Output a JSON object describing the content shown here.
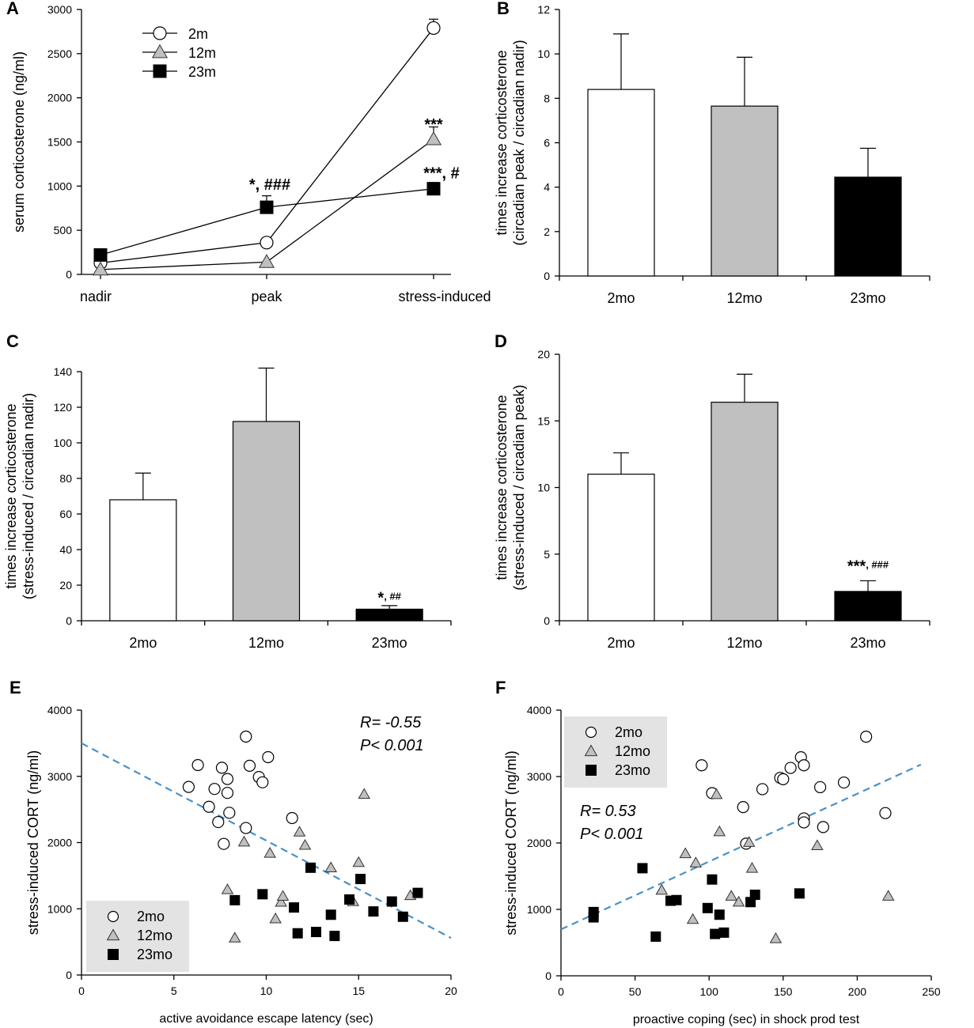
{
  "colors": {
    "c2": "#ffffff",
    "c12": "#c0c0c0",
    "c23": "#000000",
    "trend": "#4a90c8",
    "legend_bg": "#e3e3e3"
  },
  "chart_data": [
    {
      "panel": "A",
      "type": "line",
      "categories": [
        "nadir",
        "peak",
        "stress-induced"
      ],
      "ylabel": "serum corticosterone (ng/ml)",
      "ylim": [
        0,
        3000
      ],
      "yticks": [
        0,
        500,
        1000,
        1500,
        2000,
        2500,
        3000
      ],
      "legend": {
        "position": "top-left",
        "items": [
          "2m",
          "12m",
          "23m"
        ]
      },
      "series": [
        {
          "name": "2m",
          "key": "c2",
          "marker": "circle",
          "values": [
            130,
            360,
            2790
          ],
          "err": [
            0,
            0,
            100
          ]
        },
        {
          "name": "12m",
          "key": "c12",
          "marker": "triangle",
          "values": [
            55,
            140,
            1530
          ],
          "err": [
            0,
            0,
            140
          ]
        },
        {
          "name": "23m",
          "key": "c23",
          "marker": "square",
          "values": [
            220,
            760,
            970
          ],
          "err": [
            0,
            130,
            70
          ]
        }
      ],
      "annotations": [
        {
          "cat": 1,
          "value": 960,
          "stars": "*",
          "hash": ", ###"
        },
        {
          "cat": 2,
          "value": 1640,
          "stars": "***",
          "hash": ""
        },
        {
          "cat": 2,
          "value": 1090,
          "stars": "***",
          "hash": ", #"
        }
      ]
    },
    {
      "panel": "B",
      "type": "bar",
      "categories": [
        "2mo",
        "12mo",
        "23mo"
      ],
      "ylabel": "times increase corticosterone",
      "ylabel2": "(circadian peak / circadian nadir)",
      "ylim": [
        0,
        12
      ],
      "yticks": [
        0,
        2,
        4,
        6,
        8,
        10,
        12
      ],
      "values": [
        8.4,
        7.65,
        4.45
      ],
      "err": [
        2.5,
        2.2,
        1.3
      ],
      "annotations": []
    },
    {
      "panel": "C",
      "type": "bar",
      "categories": [
        "2mo",
        "12mo",
        "23mo"
      ],
      "ylabel": "times increase corticosterone",
      "ylabel2": "(stress-induced / circadian nadir)",
      "ylim": [
        0,
        140
      ],
      "yticks": [
        0,
        20,
        40,
        60,
        80,
        100,
        120,
        140
      ],
      "values": [
        68,
        112,
        6.5
      ],
      "err": [
        15,
        30,
        2
      ],
      "annotations": [
        {
          "cat": 2,
          "value": 10,
          "stars": "*",
          "hash": ", ##"
        }
      ]
    },
    {
      "panel": "D",
      "type": "bar",
      "categories": [
        "2mo",
        "12mo",
        "23mo"
      ],
      "ylabel": "times increase corticosterone",
      "ylabel2": "(stress-induced / circadian peak)",
      "ylim": [
        0,
        20
      ],
      "yticks": [
        0,
        5,
        10,
        15,
        20
      ],
      "values": [
        11,
        16.4,
        2.2
      ],
      "err": [
        1.6,
        2.1,
        0.8
      ],
      "annotations": [
        {
          "cat": 2,
          "value": 3.7,
          "stars": "***",
          "hash": ", ###"
        }
      ]
    },
    {
      "panel": "E",
      "type": "scatter",
      "xlabel": "active avoidance escape latency (sec)",
      "ylabel": "stress-induced CORT (ng/ml)",
      "xlim": [
        0,
        20
      ],
      "ylim": [
        0,
        4000
      ],
      "xticks": [
        0,
        5,
        10,
        15,
        20
      ],
      "yticks": [
        0,
        1000,
        2000,
        3000,
        4000
      ],
      "legend": {
        "position": "bottom-left",
        "items": [
          "2mo",
          "12mo",
          "23mo"
        ]
      },
      "stats": {
        "r": "R= -0.55",
        "p": "P<  0.001"
      },
      "trend": [
        [
          0,
          3500
        ],
        [
          20,
          560
        ]
      ],
      "series": [
        {
          "name": "2mo",
          "key": "c2",
          "marker": "circle",
          "points": [
            [
              5.8,
              2840
            ],
            [
              6.3,
              3170
            ],
            [
              6.9,
              2540
            ],
            [
              7.2,
              2810
            ],
            [
              7.4,
              2310
            ],
            [
              7.6,
              3130
            ],
            [
              7.7,
              1980
            ],
            [
              7.9,
              2960
            ],
            [
              7.9,
              2750
            ],
            [
              8.0,
              2450
            ],
            [
              8.9,
              3600
            ],
            [
              8.9,
              2220
            ],
            [
              9.1,
              3160
            ],
            [
              9.6,
              2990
            ],
            [
              9.8,
              2910
            ],
            [
              10.1,
              3290
            ],
            [
              11.4,
              2370
            ]
          ]
        },
        {
          "name": "12mo",
          "key": "c12",
          "marker": "triangle",
          "points": [
            [
              7.9,
              1290
            ],
            [
              8.3,
              560
            ],
            [
              8.8,
              2010
            ],
            [
              10.2,
              1840
            ],
            [
              10.5,
              850
            ],
            [
              10.8,
              1100
            ],
            [
              10.9,
              1190
            ],
            [
              11.8,
              2160
            ],
            [
              12.1,
              1960
            ],
            [
              13.5,
              1620
            ],
            [
              14.7,
              1110
            ],
            [
              15.0,
              1700
            ],
            [
              15.3,
              2730
            ],
            [
              17.8,
              1200
            ]
          ]
        },
        {
          "name": "23mo",
          "key": "c23",
          "marker": "square",
          "points": [
            [
              8.3,
              1130
            ],
            [
              9.8,
              1220
            ],
            [
              11.5,
              1020
            ],
            [
              11.7,
              630
            ],
            [
              12.4,
              1620
            ],
            [
              12.7,
              650
            ],
            [
              13.5,
              910
            ],
            [
              13.7,
              590
            ],
            [
              14.5,
              1140
            ],
            [
              15.1,
              1450
            ],
            [
              15.8,
              960
            ],
            [
              16.8,
              1110
            ],
            [
              17.4,
              880
            ],
            [
              18.2,
              1240
            ]
          ]
        }
      ]
    },
    {
      "panel": "F",
      "type": "scatter",
      "xlabel": "proactive coping (sec) in shock prod test",
      "ylabel": "stress-induced CORT (ng/ml)",
      "xlim": [
        0,
        250
      ],
      "ylim": [
        0,
        4000
      ],
      "xticks": [
        0,
        50,
        100,
        150,
        200,
        250
      ],
      "yticks": [
        0,
        1000,
        2000,
        3000,
        4000
      ],
      "legend": {
        "position": "top-left",
        "items": [
          "2mo",
          "12mo",
          "23mo"
        ]
      },
      "stats": {
        "r": "R= 0.53",
        "p": "P< 0.001"
      },
      "trend": [
        [
          0,
          700
        ],
        [
          243,
          3180
        ]
      ],
      "series": [
        {
          "name": "2mo",
          "key": "c2",
          "marker": "circle",
          "points": [
            [
              95,
              3170
            ],
            [
              102,
              2750
            ],
            [
              123,
              2540
            ],
            [
              125,
              1990
            ],
            [
              136,
              2810
            ],
            [
              148,
              2980
            ],
            [
              150,
              2960
            ],
            [
              155,
              3130
            ],
            [
              162,
              3290
            ],
            [
              164,
              3170
            ],
            [
              164,
              2370
            ],
            [
              164,
              2310
            ],
            [
              175,
              2840
            ],
            [
              177,
              2240
            ],
            [
              191,
              2910
            ],
            [
              206,
              3600
            ],
            [
              219,
              2450
            ]
          ]
        },
        {
          "name": "12mo",
          "key": "c12",
          "marker": "triangle",
          "points": [
            [
              68,
              1290
            ],
            [
              84,
              1840
            ],
            [
              89,
              850
            ],
            [
              91,
              1700
            ],
            [
              105,
              2730
            ],
            [
              107,
              2170
            ],
            [
              115,
              1200
            ],
            [
              120,
              1110
            ],
            [
              127,
              2010
            ],
            [
              129,
              1620
            ],
            [
              145,
              560
            ],
            [
              173,
              1960
            ],
            [
              221,
              1200
            ]
          ]
        },
        {
          "name": "23mo",
          "key": "c23",
          "marker": "square",
          "points": [
            [
              22,
              960
            ],
            [
              22,
              880
            ],
            [
              55,
              1620
            ],
            [
              64,
              590
            ],
            [
              74,
              1130
            ],
            [
              78,
              1140
            ],
            [
              99,
              1020
            ],
            [
              102,
              1450
            ],
            [
              104,
              630
            ],
            [
              107,
              920
            ],
            [
              110,
              650
            ],
            [
              128,
              1110
            ],
            [
              131,
              1220
            ],
            [
              161,
              1240
            ]
          ]
        }
      ]
    }
  ]
}
